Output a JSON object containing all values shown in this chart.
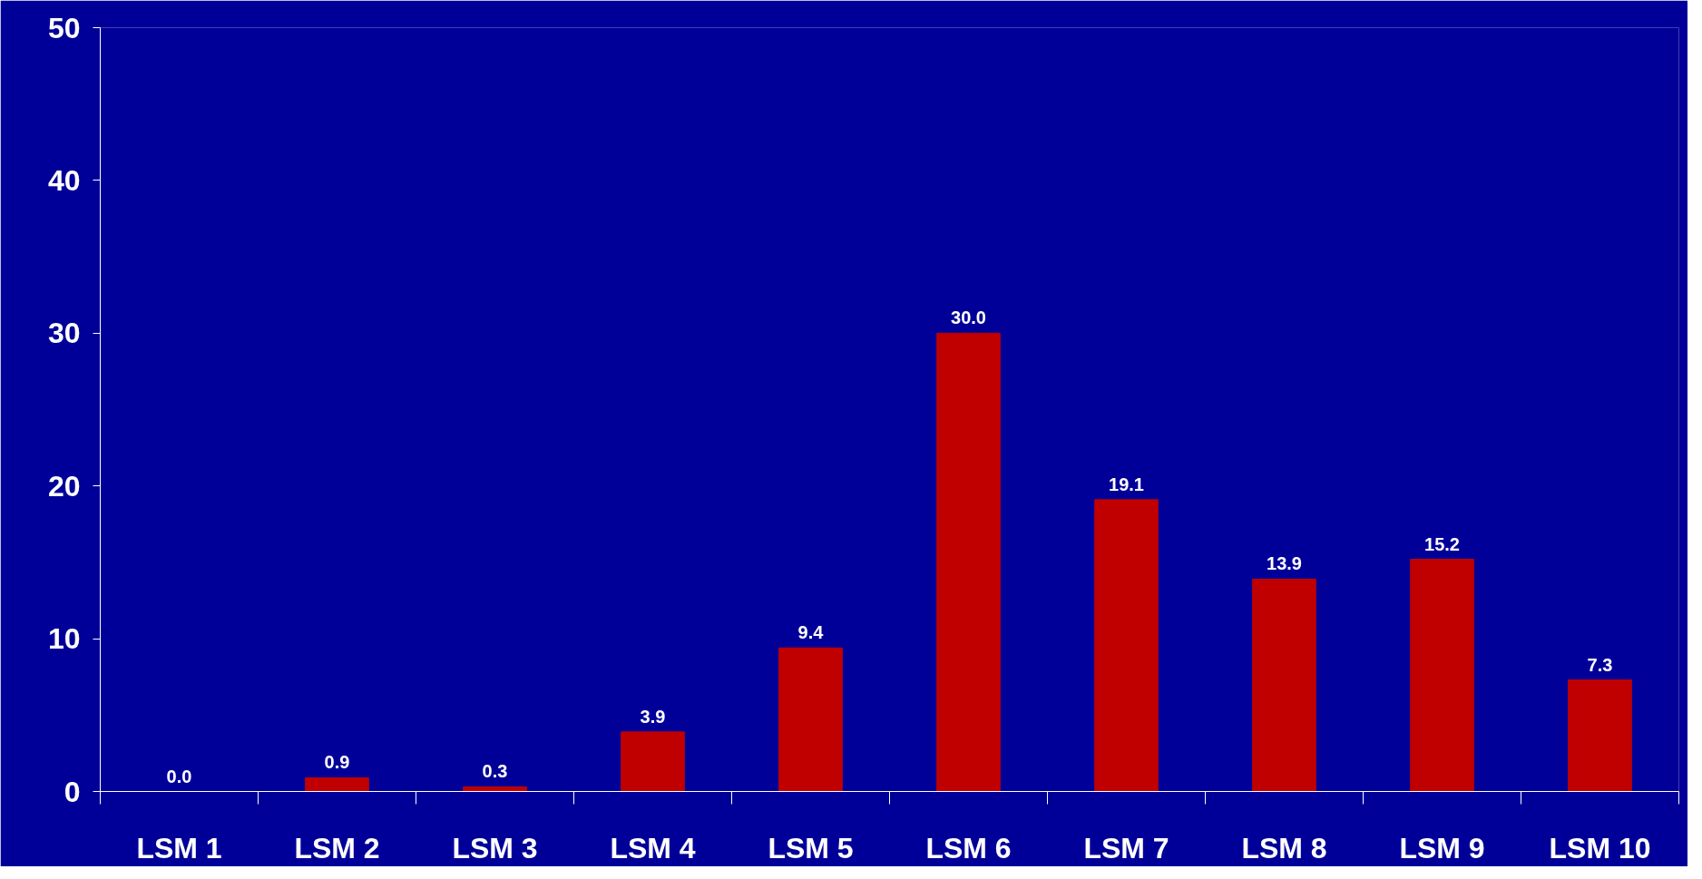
{
  "chart_data": {
    "type": "bar",
    "categories": [
      "LSM 1",
      "LSM 2",
      "LSM 3",
      "LSM 4",
      "LSM 5",
      "LSM 6",
      "LSM 7",
      "LSM 8",
      "LSM 9",
      "LSM 10"
    ],
    "values": [
      0.0,
      0.9,
      0.3,
      3.9,
      9.4,
      30.0,
      19.1,
      13.9,
      15.2,
      7.3
    ],
    "value_labels": [
      "0.0",
      "0.9",
      "0.3",
      "3.9",
      "9.4",
      "30.0",
      "19.1",
      "13.9",
      "15.2",
      "7.3"
    ],
    "color": "#c00000",
    "ylim": [
      0,
      50
    ],
    "yticks": [
      0,
      10,
      20,
      30,
      40,
      50
    ]
  }
}
